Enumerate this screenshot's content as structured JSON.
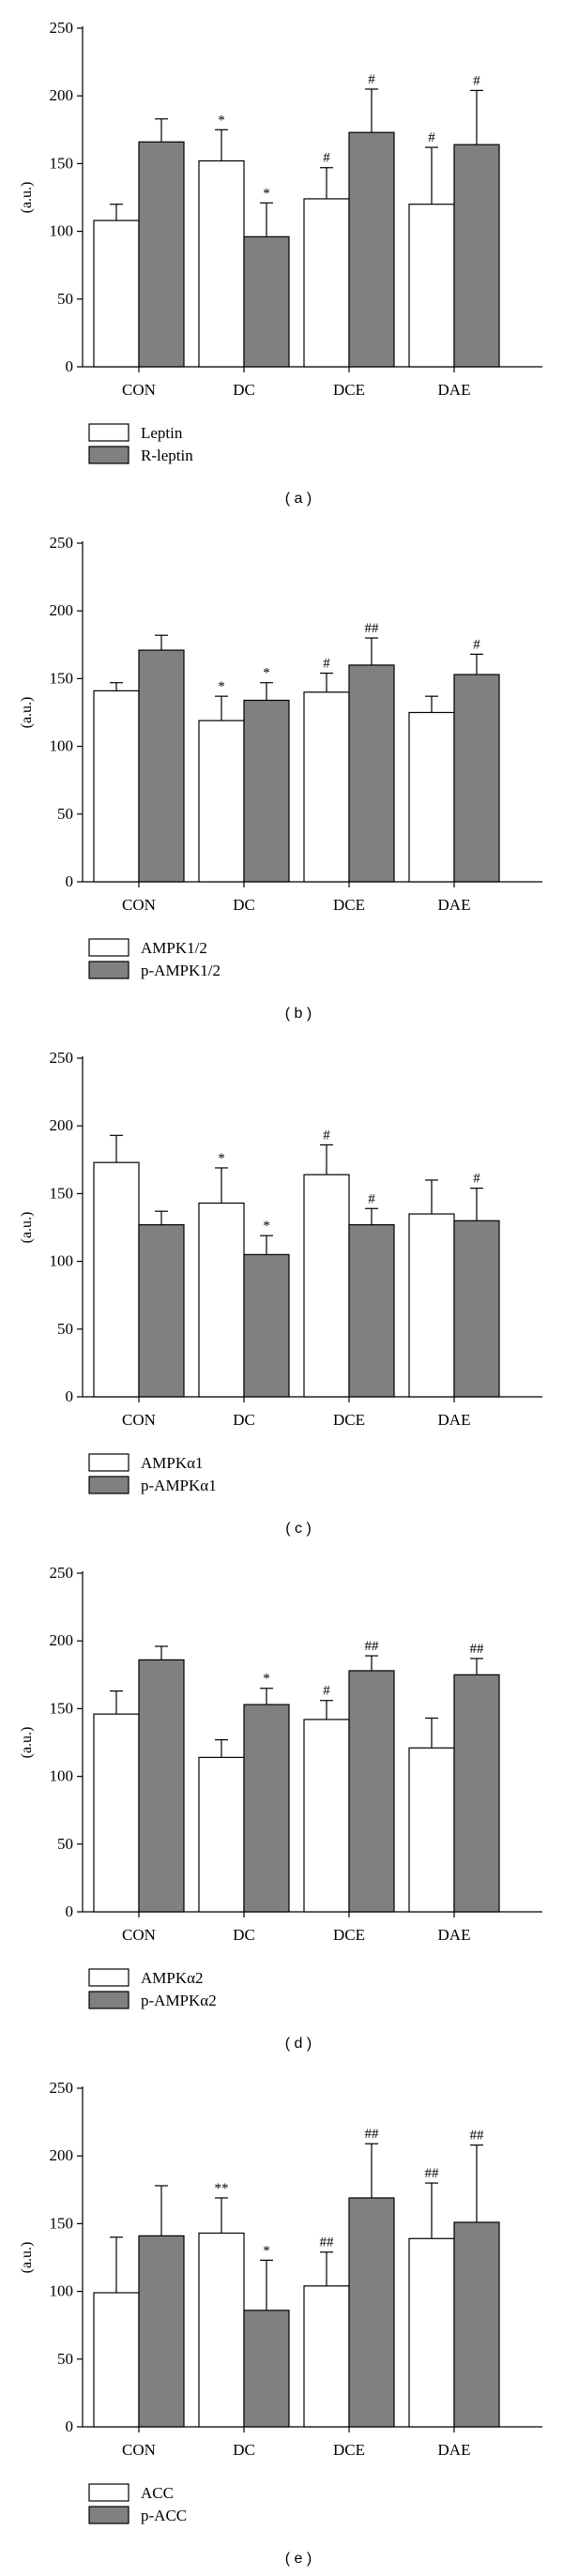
{
  "chart_data": [
    {
      "type": "bar",
      "panel_label": "( a )",
      "ylabel": "(a.u.)",
      "ylim": [
        0,
        250
      ],
      "yticks": [
        0,
        50,
        100,
        150,
        200,
        250
      ],
      "categories": [
        "CON",
        "DC",
        "DCE",
        "DAE"
      ],
      "series": [
        {
          "name": "Leptin",
          "color": "#ffffff",
          "values": [
            108,
            152,
            124,
            120
          ],
          "errors": [
            12,
            23,
            23,
            42
          ],
          "annotations": [
            "",
            "*",
            "#",
            "#"
          ]
        },
        {
          "name": "R-leptin",
          "color": "#808080",
          "values": [
            166,
            96,
            173,
            164
          ],
          "errors": [
            17,
            25,
            32,
            40
          ],
          "annotations": [
            "",
            "*",
            "#",
            "#"
          ]
        }
      ],
      "legend_placement": "below"
    },
    {
      "type": "bar",
      "panel_label": "( b )",
      "ylabel": "(a.u.)",
      "ylim": [
        0,
        250
      ],
      "yticks": [
        0,
        50,
        100,
        150,
        200,
        250
      ],
      "categories": [
        "CON",
        "DC",
        "DCE",
        "DAE"
      ],
      "series": [
        {
          "name": "AMPK1/2",
          "color": "#ffffff",
          "values": [
            141,
            119,
            140,
            125
          ],
          "errors": [
            6,
            18,
            14,
            12
          ],
          "annotations": [
            "",
            "*",
            "#",
            ""
          ]
        },
        {
          "name": "p-AMPK1/2",
          "color": "#808080",
          "values": [
            171,
            134,
            160,
            153
          ],
          "errors": [
            11,
            13,
            20,
            15
          ],
          "annotations": [
            "",
            "*",
            "##",
            "#"
          ]
        }
      ],
      "legend_placement": "below"
    },
    {
      "type": "bar",
      "panel_label": "( c )",
      "ylabel": "(a.u.)",
      "ylim": [
        0,
        250
      ],
      "yticks": [
        0,
        50,
        100,
        150,
        200,
        250
      ],
      "categories": [
        "CON",
        "DC",
        "DCE",
        "DAE"
      ],
      "series": [
        {
          "name": "AMPKα1",
          "color": "#ffffff",
          "values": [
            173,
            143,
            164,
            135
          ],
          "errors": [
            20,
            26,
            22,
            25
          ],
          "annotations": [
            "",
            "*",
            "#",
            ""
          ]
        },
        {
          "name": "p-AMPKα1",
          "color": "#808080",
          "values": [
            127,
            105,
            127,
            130
          ],
          "errors": [
            10,
            14,
            12,
            24
          ],
          "annotations": [
            "",
            "*",
            "#",
            "#"
          ]
        }
      ],
      "legend_placement": "below"
    },
    {
      "type": "bar",
      "panel_label": "( d )",
      "ylabel": "(a.u.)",
      "ylim": [
        0,
        250
      ],
      "yticks": [
        0,
        50,
        100,
        150,
        200,
        250
      ],
      "categories": [
        "CON",
        "DC",
        "DCE",
        "DAE"
      ],
      "series": [
        {
          "name": "AMPKα2",
          "color": "#ffffff",
          "values": [
            146,
            114,
            142,
            121
          ],
          "errors": [
            17,
            13,
            14,
            22
          ],
          "annotations": [
            "",
            "",
            "#",
            ""
          ]
        },
        {
          "name": "p-AMPKα2",
          "color": "#808080",
          "values": [
            186,
            153,
            178,
            175
          ],
          "errors": [
            10,
            12,
            11,
            12
          ],
          "annotations": [
            "",
            "*",
            "##",
            "##"
          ]
        }
      ],
      "legend_placement": "below"
    },
    {
      "type": "bar",
      "panel_label": "( e )",
      "ylabel": "(a.u.)",
      "ylim": [
        0,
        250
      ],
      "yticks": [
        0,
        50,
        100,
        150,
        200,
        250
      ],
      "categories": [
        "CON",
        "DC",
        "DCE",
        "DAE"
      ],
      "series": [
        {
          "name": "ACC",
          "color": "#ffffff",
          "values": [
            99,
            143,
            104,
            139
          ],
          "errors": [
            41,
            26,
            25,
            41
          ],
          "annotations": [
            "",
            "**",
            "##",
            "##"
          ]
        },
        {
          "name": "p-ACC",
          "color": "#808080",
          "values": [
            141,
            86,
            169,
            151
          ],
          "errors": [
            37,
            37,
            40,
            57
          ],
          "annotations": [
            "",
            "*",
            "##",
            "##"
          ]
        }
      ],
      "legend_placement": "below"
    }
  ]
}
